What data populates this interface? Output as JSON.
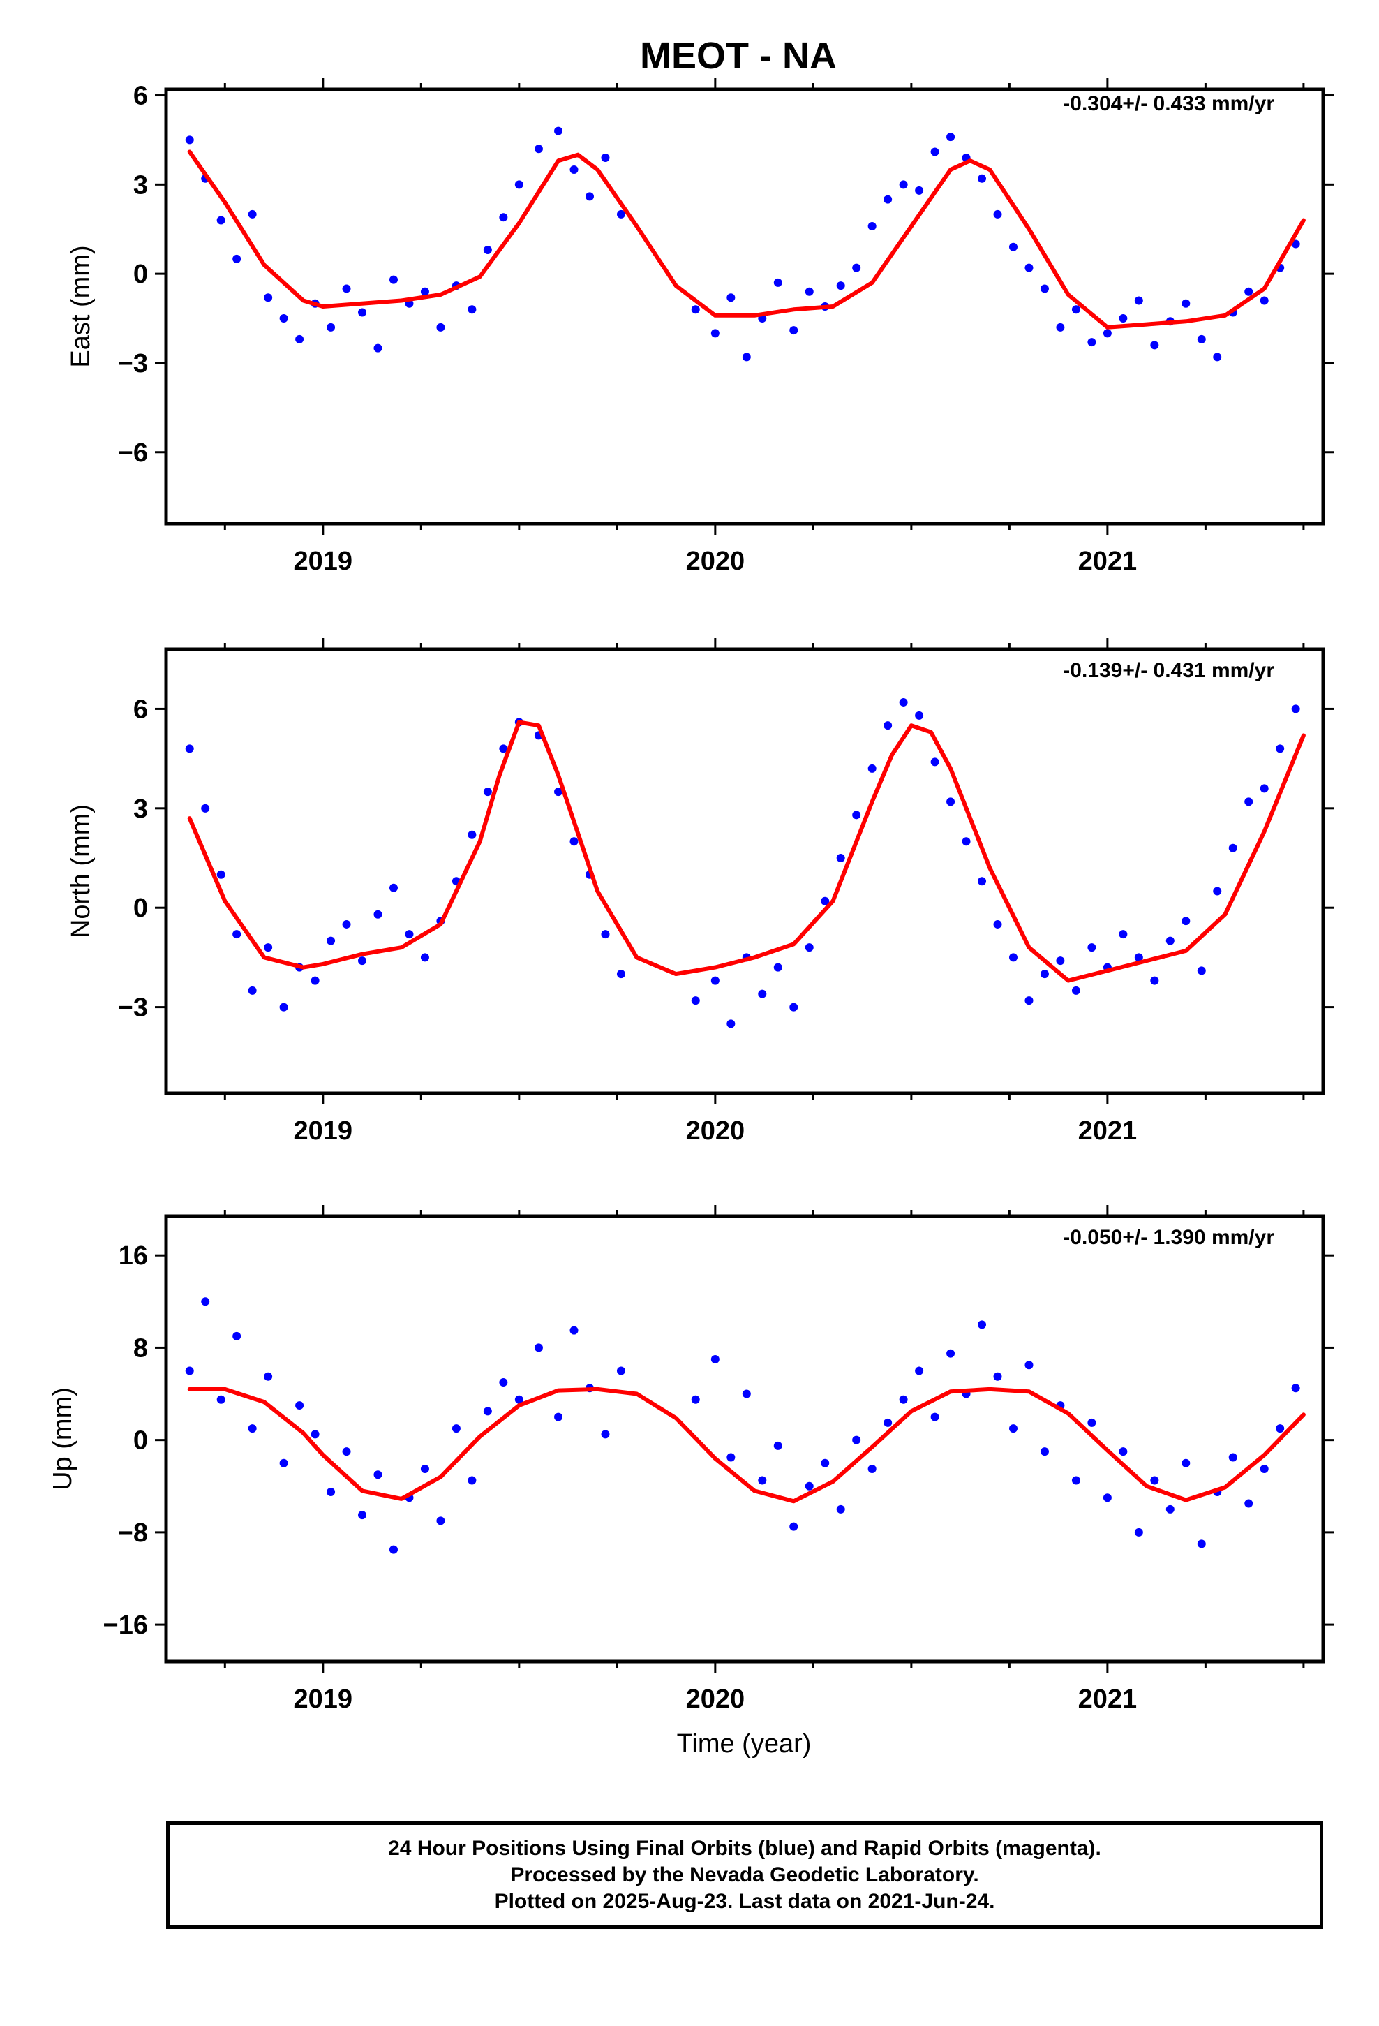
{
  "figure_title": "MEOT - NA",
  "xlabel": "Time (year)",
  "footer": {
    "line1": "24 Hour Positions Using Final Orbits (blue) and Rapid Orbits (magenta).",
    "line2": "Processed by the Nevada Geodetic Laboratory.",
    "line3": "Plotted on 2025-Aug-23. Last data on 2021-Jun-24."
  },
  "colors": {
    "points": "#0000ff",
    "fit": "#ff0000",
    "frame": "#000000"
  },
  "chart_data": [
    {
      "type": "scatter",
      "ylabel": "East (mm)",
      "rate_text": "-0.304+/- 0.433 mm/yr",
      "xlim": [
        2018.6,
        2021.55
      ],
      "ylim": [
        -8.4,
        6.2
      ],
      "yticks": [
        6,
        3,
        0,
        -3,
        -6
      ],
      "ytick_labels": [
        "6",
        "3",
        "0",
        "−3",
        "−6"
      ],
      "xticks": [
        2019,
        2020,
        2021
      ],
      "xtick_labels": [
        "2019",
        "2020",
        "2021"
      ],
      "series": [
        {
          "kind": "points",
          "x": [
            2018.66,
            2018.7,
            2018.74,
            2018.78,
            2018.82,
            2018.86,
            2018.9,
            2018.94,
            2018.98,
            2019.02,
            2019.06,
            2019.1,
            2019.14,
            2019.18,
            2019.22,
            2019.26,
            2019.3,
            2019.34,
            2019.38,
            2019.42,
            2019.46,
            2019.5,
            2019.55,
            2019.6,
            2019.64,
            2019.68,
            2019.72,
            2019.76,
            2019.95,
            2020.0,
            2020.04,
            2020.08,
            2020.12,
            2020.16,
            2020.2,
            2020.24,
            2020.28,
            2020.32,
            2020.36,
            2020.4,
            2020.44,
            2020.48,
            2020.52,
            2020.56,
            2020.6,
            2020.64,
            2020.68,
            2020.72,
            2020.76,
            2020.8,
            2020.84,
            2020.88,
            2020.92,
            2020.96,
            2021.0,
            2021.04,
            2021.08,
            2021.12,
            2021.16,
            2021.2,
            2021.24,
            2021.28,
            2021.32,
            2021.36,
            2021.4,
            2021.44,
            2021.48
          ],
          "y": [
            4.5,
            3.2,
            1.8,
            0.5,
            2.0,
            -0.8,
            -1.5,
            -2.2,
            -1.0,
            -1.8,
            -0.5,
            -1.3,
            -2.5,
            -0.2,
            -1.0,
            -0.6,
            -1.8,
            -0.4,
            -1.2,
            0.8,
            1.9,
            3.0,
            4.2,
            4.8,
            3.5,
            2.6,
            3.9,
            2.0,
            -1.2,
            -2.0,
            -0.8,
            -2.8,
            -1.5,
            -0.3,
            -1.9,
            -0.6,
            -1.1,
            -0.4,
            0.2,
            1.6,
            2.5,
            3.0,
            2.8,
            4.1,
            4.6,
            3.9,
            3.2,
            2.0,
            0.9,
            0.2,
            -0.5,
            -1.8,
            -1.2,
            -2.3,
            -2.0,
            -1.5,
            -0.9,
            -2.4,
            -1.6,
            -1.0,
            -2.2,
            -2.8,
            -1.3,
            -0.6,
            -0.9,
            0.2,
            1.0
          ]
        },
        {
          "kind": "fit",
          "x": [
            2018.66,
            2018.75,
            2018.85,
            2018.95,
            2019.0,
            2019.1,
            2019.2,
            2019.3,
            2019.4,
            2019.5,
            2019.6,
            2019.65,
            2019.7,
            2019.8,
            2019.9,
            2020.0,
            2020.1,
            2020.2,
            2020.3,
            2020.4,
            2020.5,
            2020.6,
            2020.65,
            2020.7,
            2020.8,
            2020.9,
            2021.0,
            2021.1,
            2021.2,
            2021.3,
            2021.4,
            2021.5
          ],
          "y": [
            4.1,
            2.4,
            0.3,
            -0.9,
            -1.1,
            -1.0,
            -0.9,
            -0.7,
            -0.1,
            1.7,
            3.8,
            4.0,
            3.5,
            1.6,
            -0.4,
            -1.4,
            -1.4,
            -1.2,
            -1.1,
            -0.3,
            1.6,
            3.5,
            3.8,
            3.5,
            1.5,
            -0.7,
            -1.8,
            -1.7,
            -1.6,
            -1.4,
            -0.5,
            1.8
          ]
        }
      ]
    },
    {
      "type": "scatter",
      "ylabel": "North (mm)",
      "rate_text": "-0.139+/- 0.431 mm/yr",
      "xlim": [
        2018.6,
        2021.55
      ],
      "ylim": [
        -5.6,
        7.8
      ],
      "yticks": [
        6,
        3,
        0,
        -3
      ],
      "ytick_labels": [
        "6",
        "3",
        "0",
        "−3"
      ],
      "xticks": [
        2019,
        2020,
        2021
      ],
      "xtick_labels": [
        "2019",
        "2020",
        "2021"
      ],
      "series": [
        {
          "kind": "points",
          "x": [
            2018.66,
            2018.7,
            2018.74,
            2018.78,
            2018.82,
            2018.86,
            2018.9,
            2018.94,
            2018.98,
            2019.02,
            2019.06,
            2019.1,
            2019.14,
            2019.18,
            2019.22,
            2019.26,
            2019.3,
            2019.34,
            2019.38,
            2019.42,
            2019.46,
            2019.5,
            2019.55,
            2019.6,
            2019.64,
            2019.68,
            2019.72,
            2019.76,
            2019.95,
            2020.0,
            2020.04,
            2020.08,
            2020.12,
            2020.16,
            2020.2,
            2020.24,
            2020.28,
            2020.32,
            2020.36,
            2020.4,
            2020.44,
            2020.48,
            2020.52,
            2020.56,
            2020.6,
            2020.64,
            2020.68,
            2020.72,
            2020.76,
            2020.8,
            2020.84,
            2020.88,
            2020.92,
            2020.96,
            2021.0,
            2021.04,
            2021.08,
            2021.12,
            2021.16,
            2021.2,
            2021.24,
            2021.28,
            2021.32,
            2021.36,
            2021.4,
            2021.44,
            2021.48
          ],
          "y": [
            4.8,
            3.0,
            1.0,
            -0.8,
            -2.5,
            -1.2,
            -3.0,
            -1.8,
            -2.2,
            -1.0,
            -0.5,
            -1.6,
            -0.2,
            0.6,
            -0.8,
            -1.5,
            -0.4,
            0.8,
            2.2,
            3.5,
            4.8,
            5.6,
            5.2,
            3.5,
            2.0,
            1.0,
            -0.8,
            -2.0,
            -2.8,
            -2.2,
            -3.5,
            -1.5,
            -2.6,
            -1.8,
            -3.0,
            -1.2,
            0.2,
            1.5,
            2.8,
            4.2,
            5.5,
            6.2,
            5.8,
            4.4,
            3.2,
            2.0,
            0.8,
            -0.5,
            -1.5,
            -2.8,
            -2.0,
            -1.6,
            -2.5,
            -1.2,
            -1.8,
            -0.8,
            -1.5,
            -2.2,
            -1.0,
            -0.4,
            -1.9,
            0.5,
            1.8,
            3.2,
            3.6,
            4.8,
            6.0
          ]
        },
        {
          "kind": "fit",
          "x": [
            2018.66,
            2018.75,
            2018.85,
            2018.95,
            2019.0,
            2019.1,
            2019.2,
            2019.3,
            2019.4,
            2019.45,
            2019.5,
            2019.55,
            2019.6,
            2019.7,
            2019.8,
            2019.9,
            2020.0,
            2020.1,
            2020.2,
            2020.3,
            2020.4,
            2020.45,
            2020.5,
            2020.55,
            2020.6,
            2020.7,
            2020.8,
            2020.9,
            2021.0,
            2021.1,
            2021.2,
            2021.3,
            2021.4,
            2021.5
          ],
          "y": [
            2.7,
            0.2,
            -1.5,
            -1.8,
            -1.7,
            -1.4,
            -1.2,
            -0.5,
            2.0,
            4.0,
            5.6,
            5.5,
            4.0,
            0.5,
            -1.5,
            -2.0,
            -1.8,
            -1.5,
            -1.1,
            0.2,
            3.2,
            4.6,
            5.5,
            5.3,
            4.2,
            1.2,
            -1.2,
            -2.2,
            -1.9,
            -1.6,
            -1.3,
            -0.2,
            2.3,
            5.2
          ]
        }
      ]
    },
    {
      "type": "scatter",
      "ylabel": "Up (mm)",
      "rate_text": "-0.050+/- 1.390 mm/yr",
      "xlim": [
        2018.6,
        2021.55
      ],
      "ylim": [
        -19.2,
        19.4
      ],
      "yticks": [
        16,
        8,
        0,
        -8,
        -16
      ],
      "ytick_labels": [
        "16",
        "8",
        "0",
        "−8",
        "−16"
      ],
      "xticks": [
        2019,
        2020,
        2021
      ],
      "xtick_labels": [
        "2019",
        "2020",
        "2021"
      ],
      "series": [
        {
          "kind": "points",
          "x": [
            2018.66,
            2018.7,
            2018.74,
            2018.78,
            2018.82,
            2018.86,
            2018.9,
            2018.94,
            2018.98,
            2019.02,
            2019.06,
            2019.1,
            2019.14,
            2019.18,
            2019.22,
            2019.26,
            2019.3,
            2019.34,
            2019.38,
            2019.42,
            2019.46,
            2019.5,
            2019.55,
            2019.6,
            2019.64,
            2019.68,
            2019.72,
            2019.76,
            2019.95,
            2020.0,
            2020.04,
            2020.08,
            2020.12,
            2020.16,
            2020.2,
            2020.24,
            2020.28,
            2020.32,
            2020.36,
            2020.4,
            2020.44,
            2020.48,
            2020.52,
            2020.56,
            2020.6,
            2020.64,
            2020.68,
            2020.72,
            2020.76,
            2020.8,
            2020.84,
            2020.88,
            2020.92,
            2020.96,
            2021.0,
            2021.04,
            2021.08,
            2021.12,
            2021.16,
            2021.2,
            2021.24,
            2021.28,
            2021.32,
            2021.36,
            2021.4,
            2021.44,
            2021.48
          ],
          "y": [
            6.0,
            12.0,
            3.5,
            9.0,
            1.0,
            5.5,
            -2.0,
            3.0,
            0.5,
            -4.5,
            -1.0,
            -6.5,
            -3.0,
            -9.5,
            -5.0,
            -2.5,
            -7.0,
            1.0,
            -3.5,
            2.5,
            5.0,
            3.5,
            8.0,
            2.0,
            9.5,
            4.5,
            0.5,
            6.0,
            3.5,
            7.0,
            -1.5,
            4.0,
            -3.5,
            -0.5,
            -7.5,
            -4.0,
            -2.0,
            -6.0,
            0.0,
            -2.5,
            1.5,
            3.5,
            6.0,
            2.0,
            7.5,
            4.0,
            10.0,
            5.5,
            1.0,
            6.5,
            -1.0,
            3.0,
            -3.5,
            1.5,
            -5.0,
            -1.0,
            -8.0,
            -3.5,
            -6.0,
            -2.0,
            -9.0,
            -4.5,
            -1.5,
            -5.5,
            -2.5,
            1.0,
            4.5
          ]
        },
        {
          "kind": "fit",
          "x": [
            2018.66,
            2018.75,
            2018.85,
            2018.95,
            2019.0,
            2019.1,
            2019.2,
            2019.3,
            2019.4,
            2019.5,
            2019.6,
            2019.7,
            2019.8,
            2019.9,
            2020.0,
            2020.1,
            2020.2,
            2020.3,
            2020.4,
            2020.5,
            2020.6,
            2020.7,
            2020.8,
            2020.9,
            2021.0,
            2021.1,
            2021.2,
            2021.3,
            2021.4,
            2021.5
          ],
          "y": [
            4.4,
            4.4,
            3.3,
            0.6,
            -1.3,
            -4.4,
            -5.1,
            -3.2,
            0.3,
            3.0,
            4.3,
            4.4,
            4.0,
            1.9,
            -1.6,
            -4.4,
            -5.3,
            -3.6,
            -0.6,
            2.5,
            4.2,
            4.4,
            4.2,
            2.3,
            -0.9,
            -4.0,
            -5.2,
            -4.1,
            -1.3,
            2.2
          ]
        }
      ]
    }
  ]
}
